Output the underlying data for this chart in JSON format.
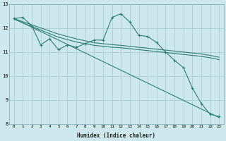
{
  "xlabel": "Humidex (Indice chaleur)",
  "bg_color": "#cce8ec",
  "grid_color": "#aacdd4",
  "line_color": "#2e7d6e",
  "x": [
    0,
    1,
    2,
    3,
    4,
    5,
    6,
    7,
    8,
    9,
    10,
    11,
    12,
    13,
    14,
    15,
    16,
    17,
    18,
    19,
    20,
    21,
    22,
    23
  ],
  "series1": [
    12.4,
    12.45,
    12.1,
    11.3,
    11.55,
    11.1,
    11.3,
    11.2,
    11.35,
    11.5,
    11.5,
    12.45,
    12.6,
    12.25,
    11.7,
    11.65,
    11.4,
    11.0,
    10.65,
    10.35,
    9.5,
    8.85,
    8.4,
    8.3
  ],
  "series2": [
    12.38,
    12.22,
    12.07,
    11.92,
    11.77,
    11.62,
    11.52,
    11.42,
    11.35,
    11.28,
    11.24,
    11.2,
    11.18,
    11.14,
    11.1,
    11.06,
    11.02,
    10.98,
    10.94,
    10.9,
    10.86,
    10.82,
    10.76,
    10.68
  ],
  "series3": [
    12.4,
    12.27,
    12.14,
    12.01,
    11.88,
    11.75,
    11.65,
    11.55,
    11.47,
    11.39,
    11.35,
    11.31,
    11.28,
    11.24,
    11.2,
    11.16,
    11.12,
    11.08,
    11.04,
    11.0,
    10.96,
    10.92,
    10.86,
    10.78
  ],
  "series4": [
    12.4,
    12.22,
    12.04,
    11.86,
    11.68,
    11.5,
    11.32,
    11.14,
    10.96,
    10.78,
    10.6,
    10.42,
    10.24,
    10.06,
    9.88,
    9.7,
    9.52,
    9.34,
    9.16,
    8.98,
    8.8,
    8.62,
    8.44,
    8.26
  ],
  "ylim": [
    8,
    13
  ],
  "yticks": [
    8,
    9,
    10,
    11,
    12,
    13
  ],
  "xlim": [
    -0.5,
    23.5
  ]
}
